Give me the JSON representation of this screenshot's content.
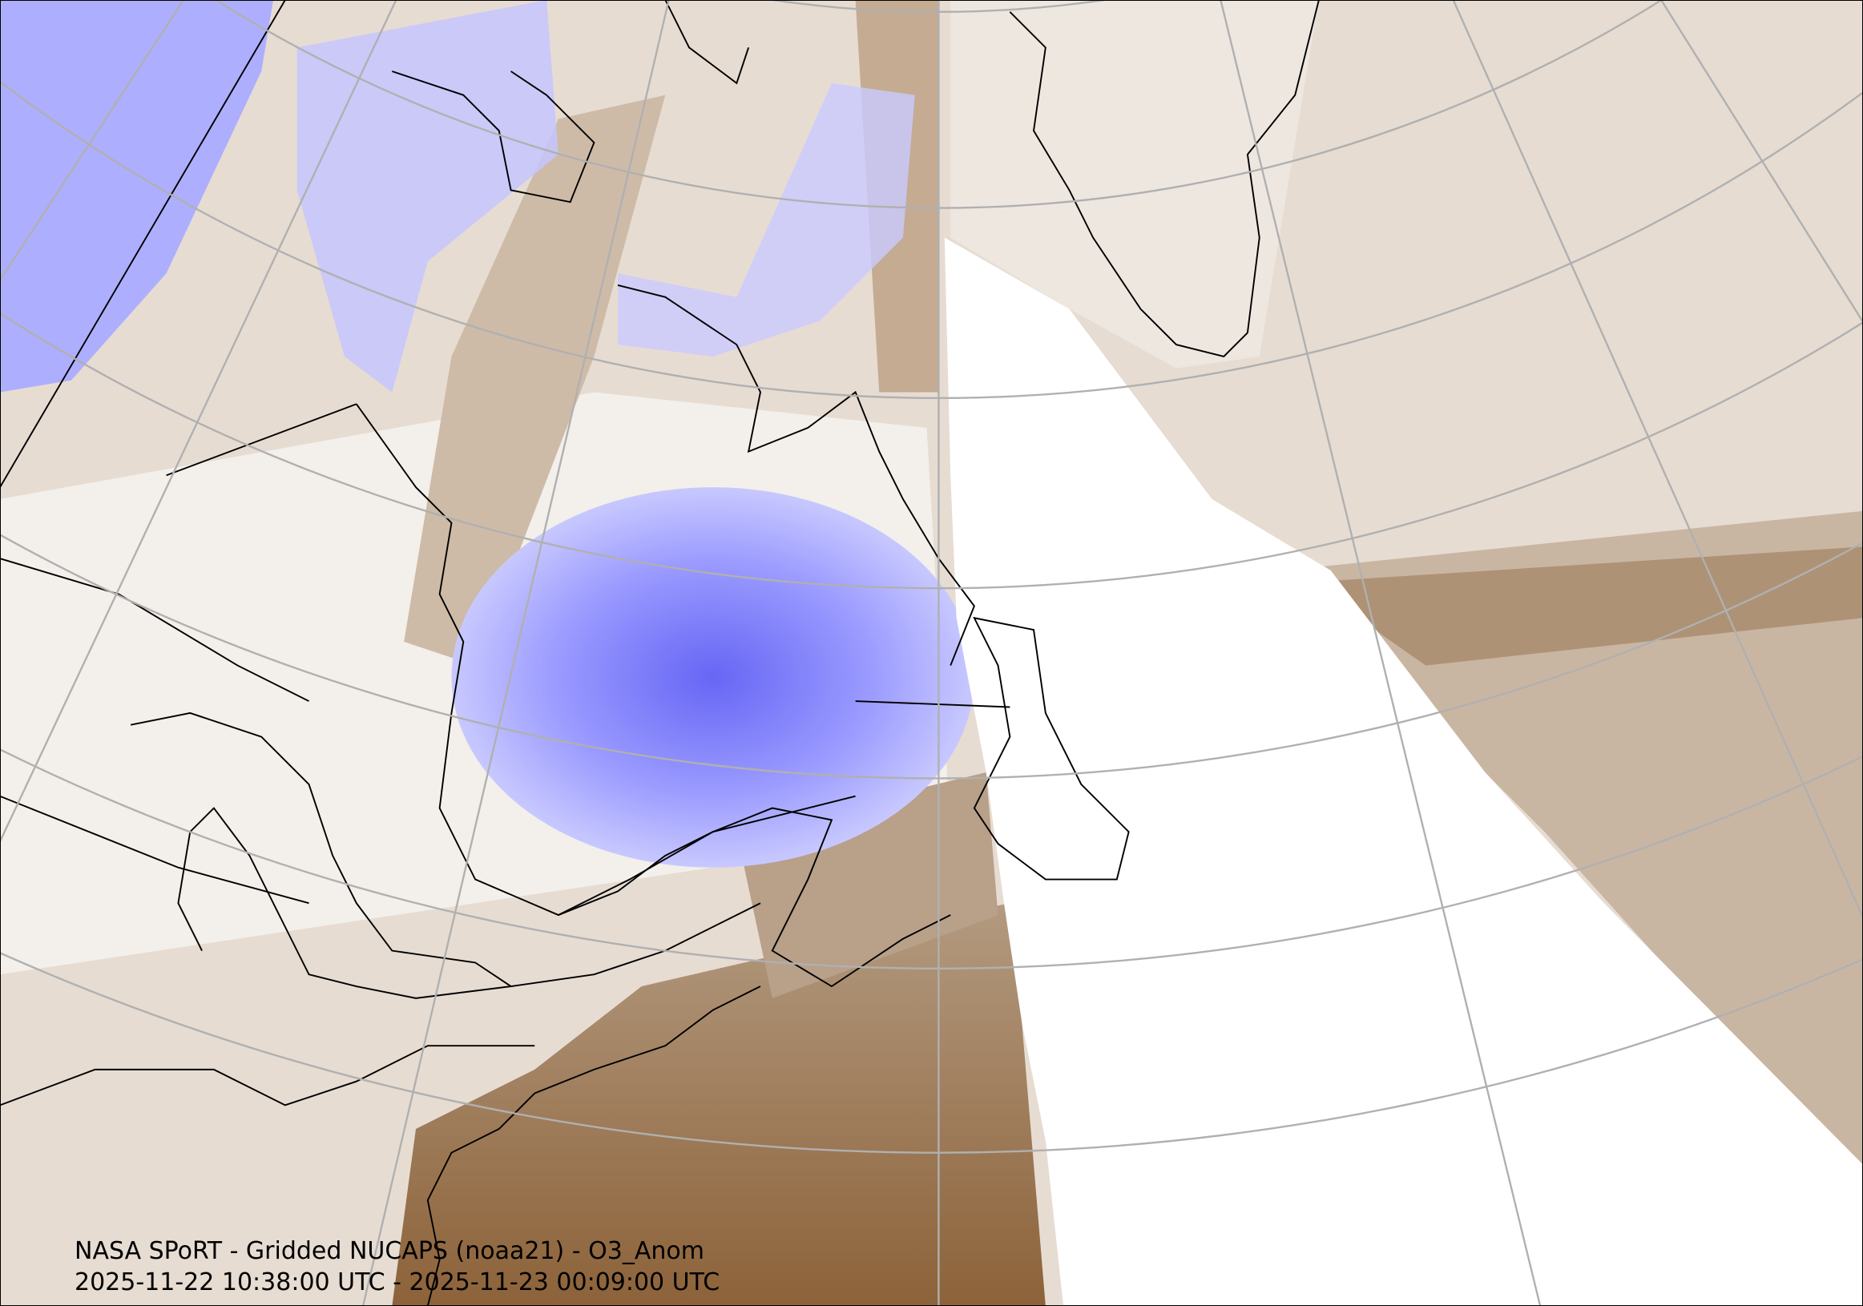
{
  "map": {
    "title": "NASA SPoRT - Gridded NUCAPS (noaa21) - O3_Anom",
    "time_range": "2025-11-22 10:38:00 UTC - 2025-11-23 00:09:00 UTC",
    "colors": {
      "no_data": "#ffffff",
      "positive_strong": "#8c6239",
      "positive_weak": "#d9cbbb",
      "neutral": "#f5f2ee",
      "negative_weak": "#c8c8ff",
      "negative_strong": "#5a5af5",
      "graticule": "#b0b0b0",
      "coastline": "#000000"
    }
  }
}
